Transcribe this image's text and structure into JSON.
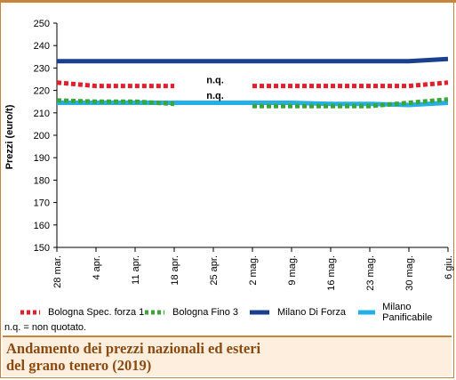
{
  "chart_data": {
    "type": "line",
    "title": "Andamento dei prezzi nazionali ed esteri\ndel grano tenero (2019)",
    "ylabel": "Prezzi (euro/t)",
    "xlabel": "",
    "ylim": [
      150,
      250
    ],
    "yticks": [
      150,
      160,
      170,
      180,
      190,
      200,
      210,
      220,
      230,
      240,
      250
    ],
    "categories": [
      "28 mar.",
      "4 apr.",
      "11 apr.",
      "18 apr.",
      "25 apr.",
      "2 mag.",
      "9 mag.",
      "16 mag.",
      "23 mag.",
      "30 mag.",
      "6 giu."
    ],
    "grid": false,
    "legend_position": "bottom",
    "series": [
      {
        "name": "Bologna Spec. forza 1",
        "color": "#e0202a",
        "style": "dotted",
        "values": [
          223.5,
          222,
          222,
          222,
          null,
          222,
          222,
          222,
          222,
          222,
          223.5
        ]
      },
      {
        "name": "Bologna Fino 3",
        "color": "#3aa53a",
        "style": "dotted",
        "values": [
          215.5,
          215,
          215,
          214,
          null,
          213,
          213,
          213,
          213,
          214.5,
          216
        ]
      },
      {
        "name": "Milano Di Forza",
        "color": "#1a3f8f",
        "style": "solid",
        "values": [
          233,
          233,
          233,
          233,
          233,
          233,
          233,
          233,
          233,
          233,
          234
        ]
      },
      {
        "name": "Milano Panificabile",
        "color": "#22b0e6",
        "style": "solid",
        "values": [
          214.5,
          214.5,
          214.5,
          214.5,
          214.5,
          214.5,
          214.5,
          214,
          214,
          213.5,
          214.5
        ]
      }
    ],
    "annotations": [
      {
        "text": "n.q.",
        "x": "25 apr.",
        "y": 222
      },
      {
        "text": "n.q.",
        "x": "25 apr.",
        "y": 215
      }
    ]
  },
  "footnote": "n.q. = non quotato.",
  "title_lines": [
    "Andamento dei prezzi nazionali ed esteri",
    "del grano tenero (2019)"
  ]
}
